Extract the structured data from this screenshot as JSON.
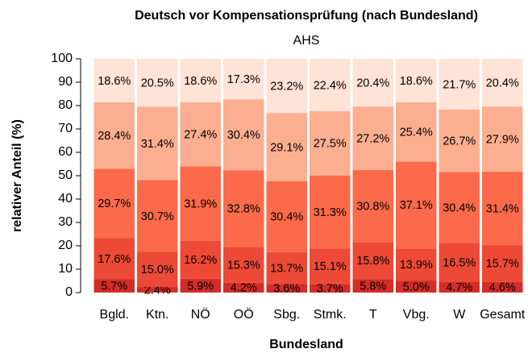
{
  "chart_data": {
    "type": "stacked_bar",
    "title": "Deutsch vor Kompensationsprüfung (nach Bundesland)",
    "subtitle": "AHS",
    "x_label": "Bundesland",
    "y_label": "relativer Anteil (%)",
    "categories": [
      "Bgld.",
      "Ktn.",
      "NÖ",
      "OÖ",
      "Sbg.",
      "Stmk.",
      "T",
      "Vbg.",
      "W",
      "Gesamt"
    ],
    "series": [
      {
        "color": "#d42d27",
        "values": [
          5.7,
          2.4,
          5.9,
          4.2,
          3.6,
          3.7,
          5.8,
          5.0,
          4.7,
          4.6
        ],
        "value_labels": [
          "5.7%",
          "2.4%",
          "5.9%",
          "4.2%",
          "3.6%",
          "3.7%",
          "5.8%",
          "5.0%",
          "4.7%",
          "4.6%"
        ]
      },
      {
        "color": "#ec4a36",
        "values": [
          17.6,
          15.0,
          16.2,
          15.3,
          13.7,
          15.1,
          15.8,
          13.9,
          16.5,
          15.7
        ],
        "value_labels": [
          "17.6%",
          "15.0%",
          "16.2%",
          "15.3%",
          "13.7%",
          "15.1%",
          "15.8%",
          "13.9%",
          "16.5%",
          "15.7%"
        ]
      },
      {
        "color": "#fb6a4a",
        "values": [
          29.7,
          30.7,
          31.9,
          32.8,
          30.4,
          31.3,
          30.8,
          37.1,
          30.4,
          31.4
        ],
        "value_labels": [
          "29.7%",
          "30.7%",
          "31.9%",
          "32.8%",
          "30.4%",
          "31.3%",
          "30.8%",
          "37.1%",
          "30.4%",
          "31.4%"
        ]
      },
      {
        "color": "#fcae91",
        "values": [
          28.4,
          31.4,
          27.4,
          30.4,
          29.1,
          27.5,
          27.2,
          25.4,
          26.7,
          27.9
        ],
        "value_labels": [
          "28.4%",
          "31.4%",
          "27.4%",
          "30.4%",
          "29.1%",
          "27.5%",
          "27.2%",
          "25.4%",
          "26.7%",
          "27.9%"
        ]
      },
      {
        "color": "#fee3d6",
        "values": [
          18.6,
          20.5,
          18.6,
          17.3,
          23.2,
          22.4,
          20.4,
          18.6,
          21.7,
          20.4
        ],
        "value_labels": [
          "18.6%",
          "20.5%",
          "18.6%",
          "17.3%",
          "23.2%",
          "22.4%",
          "20.4%",
          "18.6%",
          "21.7%",
          "20.4%"
        ]
      }
    ],
    "ylim": [
      0,
      100
    ],
    "yticks": [
      0,
      10,
      20,
      30,
      40,
      50,
      60,
      70,
      80,
      90,
      100
    ]
  }
}
